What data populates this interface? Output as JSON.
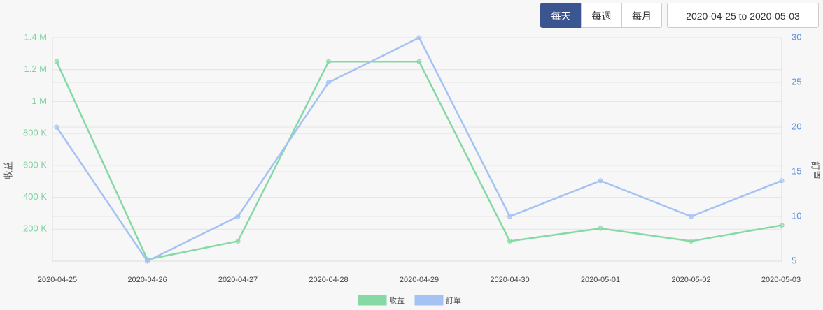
{
  "controls": {
    "buttons": [
      "每天",
      "每週",
      "每月"
    ],
    "date_range": "2020-04-25 to 2020-05-03"
  },
  "chart_data": {
    "type": "line",
    "categories": [
      "2020-04-25",
      "2020-04-26",
      "2020-04-27",
      "2020-04-28",
      "2020-04-29",
      "2020-04-30",
      "2020-05-01",
      "2020-05-02",
      "2020-05-03"
    ],
    "series": [
      {
        "name": "收益",
        "color": "#86d9a5",
        "values": [
          1250000,
          10000,
          125000,
          1250000,
          1250000,
          125000,
          205000,
          125000,
          225000
        ]
      },
      {
        "name": "訂單",
        "color": "#a4c2f4",
        "axis": "y2",
        "values": [
          20,
          5,
          10,
          25,
          30,
          10,
          14,
          10,
          14
        ]
      }
    ],
    "y_label": "收益",
    "y2_label": "訂單",
    "ylim": [
      0,
      1400000
    ],
    "yticks": [
      {
        "value": 200000,
        "label": "200 K"
      },
      {
        "value": 400000,
        "label": "400 K"
      },
      {
        "value": 600000,
        "label": "600 K"
      },
      {
        "value": 800000,
        "label": "800 K"
      },
      {
        "value": 1000000,
        "label": "1 M"
      },
      {
        "value": 1200000,
        "label": "1.2 M"
      },
      {
        "value": 1400000,
        "label": "1.4 M"
      }
    ],
    "y2lim": [
      5,
      30
    ],
    "y2ticks": [
      5,
      10,
      15,
      20,
      25,
      30
    ],
    "grid": true,
    "legend": "bottom"
  }
}
